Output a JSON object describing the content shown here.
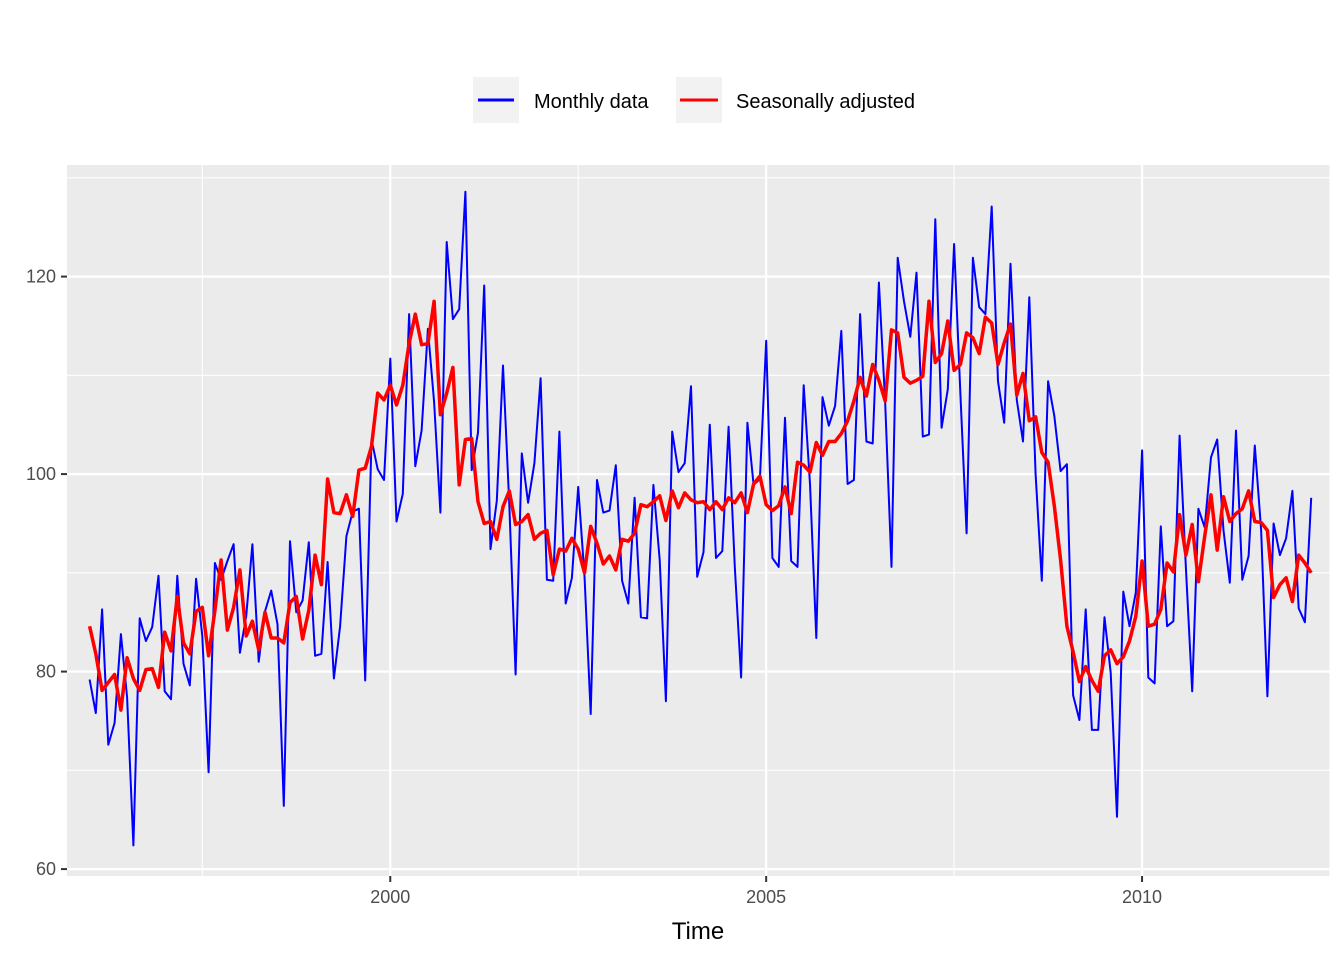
{
  "chart_data": {
    "type": "line",
    "title": "",
    "xlabel": "Time",
    "ylabel": "",
    "x_start": 1996.0,
    "x_step": 0.0833333,
    "xlim": [
      1995.7,
      2012.5
    ],
    "ylim": [
      59.3,
      131.3
    ],
    "x_ticks": [
      2000,
      2005,
      2010
    ],
    "x_tick_labels": [
      "2000",
      "2005",
      "2010"
    ],
    "y_ticks": [
      60,
      80,
      100,
      120
    ],
    "y_tick_labels": [
      "60",
      "80",
      "100",
      "120"
    ],
    "grid": true,
    "legend_position": "top",
    "series": [
      {
        "name": "Monthly data",
        "color": "#0000ff",
        "values": [
          79.2,
          75.8,
          86.3,
          72.6,
          74.8,
          83.8,
          77.4,
          62.4,
          85.4,
          83.1,
          84.5,
          89.7,
          78.0,
          77.2,
          89.7,
          80.8,
          78.6,
          89.4,
          83.6,
          69.8,
          91.0,
          89.3,
          91.2,
          92.9,
          81.9,
          85.6,
          92.9,
          81.0,
          86.1,
          88.2,
          84.8,
          66.4,
          93.2,
          86.0,
          87.2,
          93.1,
          81.6,
          81.8,
          91.1,
          79.3,
          84.6,
          93.7,
          96.2,
          96.5,
          79.1,
          103.5,
          100.5,
          99.4,
          111.7,
          95.2,
          98.0,
          116.2,
          100.8,
          104.4,
          114.7,
          107.3,
          96.1,
          123.5,
          115.7,
          116.7,
          128.6,
          100.4,
          104.2,
          119.1,
          92.4,
          97.3,
          111.0,
          96.9,
          79.7,
          102.1,
          97.1,
          101.1,
          109.7,
          89.3,
          89.2,
          104.3,
          86.9,
          89.5,
          98.7,
          89.7,
          75.7,
          99.4,
          96.1,
          96.3,
          100.9,
          89.2,
          86.9,
          97.6,
          85.5,
          85.4,
          98.9,
          91.3,
          77.0,
          104.3,
          100.2,
          101.1,
          108.9,
          89.6,
          92.1,
          105.0,
          91.5,
          92.2,
          104.8,
          90.6,
          79.4,
          105.2,
          98.9,
          99.5,
          113.5,
          91.5,
          90.6,
          105.7,
          91.2,
          90.6,
          109.0,
          99.0,
          83.4,
          107.8,
          104.9,
          106.9,
          114.5,
          99.0,
          99.4,
          116.2,
          103.3,
          103.1,
          119.4,
          107.2,
          90.6,
          121.9,
          117.5,
          113.9,
          120.4,
          103.8,
          104.0,
          125.8,
          104.7,
          108.6,
          123.3,
          108.1,
          94.0,
          121.9,
          116.9,
          116.2,
          127.1,
          109.4,
          105.2,
          121.3,
          107.5,
          103.3,
          117.9,
          100.0,
          89.2,
          109.4,
          105.9,
          100.3,
          101.0,
          77.6,
          75.1,
          86.3,
          74.1,
          74.1,
          85.5,
          79.9,
          65.3,
          88.1,
          84.6,
          88.0,
          102.4,
          79.4,
          78.8,
          94.7,
          84.6,
          85.1,
          103.9,
          90.5,
          78.0,
          96.5,
          94.6,
          101.7,
          103.5,
          94.3,
          89.0,
          104.4,
          89.3,
          91.7,
          102.9,
          94.4,
          77.5,
          95.0,
          91.8,
          93.5,
          98.3,
          86.4,
          85.0,
          97.6
        ]
      },
      {
        "name": "Seasonally adjusted",
        "color": "#ff0000",
        "values": [
          84.6,
          81.8,
          78.1,
          78.9,
          79.7,
          76.1,
          81.4,
          79.3,
          78.1,
          80.2,
          80.3,
          78.4,
          84.0,
          82.1,
          87.6,
          82.9,
          81.8,
          86.1,
          86.5,
          81.6,
          86.2,
          91.3,
          84.2,
          86.5,
          90.3,
          83.6,
          85.1,
          82.2,
          86.0,
          83.4,
          83.4,
          82.9,
          87.0,
          87.6,
          83.3,
          86.2,
          91.8,
          88.8,
          99.5,
          96.1,
          96.0,
          97.9,
          95.7,
          100.4,
          100.6,
          102.8,
          108.2,
          107.5,
          109.0,
          107.0,
          109.0,
          113.2,
          116.2,
          113.1,
          113.2,
          117.5,
          106.0,
          108.2,
          110.8,
          98.9,
          103.5,
          103.6,
          97.2,
          95.0,
          95.2,
          93.4,
          96.7,
          98.3,
          94.9,
          95.2,
          95.9,
          93.4,
          94.0,
          94.3,
          89.8,
          92.4,
          92.2,
          93.5,
          92.4,
          90.0,
          94.7,
          93.0,
          90.9,
          91.7,
          90.3,
          93.4,
          93.2,
          94.0,
          96.9,
          96.7,
          97.2,
          97.8,
          95.3,
          98.3,
          96.6,
          98.1,
          97.4,
          97.1,
          97.2,
          96.4,
          97.2,
          96.4,
          97.6,
          97.1,
          98.1,
          96.1,
          99.0,
          99.8,
          96.9,
          96.3,
          96.8,
          98.7,
          96.0,
          101.2,
          100.9,
          100.2,
          103.2,
          101.9,
          103.3,
          103.3,
          104.1,
          105.4,
          107.4,
          109.8,
          107.9,
          111.1,
          109.5,
          107.4,
          114.6,
          114.3,
          109.8,
          109.2,
          109.5,
          109.9,
          117.5,
          111.3,
          112.2,
          115.5,
          110.5,
          111.1,
          114.3,
          113.8,
          112.2,
          115.9,
          115.3,
          111.1,
          113.3,
          115.2,
          108.0,
          110.2,
          105.4,
          105.8,
          102.2,
          101.2,
          96.8,
          91.3,
          84.6,
          82.0,
          79.0,
          80.5,
          79.1,
          78.0,
          81.6,
          82.2,
          80.8,
          81.5,
          83.1,
          85.6,
          91.2,
          84.6,
          84.8,
          86.3,
          91.0,
          90.1,
          95.9,
          91.8,
          94.9,
          89.1,
          93.7,
          97.9,
          92.3,
          97.7,
          95.2,
          96.0,
          96.5,
          98.3,
          95.2,
          95.1,
          94.3,
          87.5,
          88.8,
          89.5,
          87.1,
          91.8,
          91.0,
          90.0
        ]
      }
    ]
  }
}
